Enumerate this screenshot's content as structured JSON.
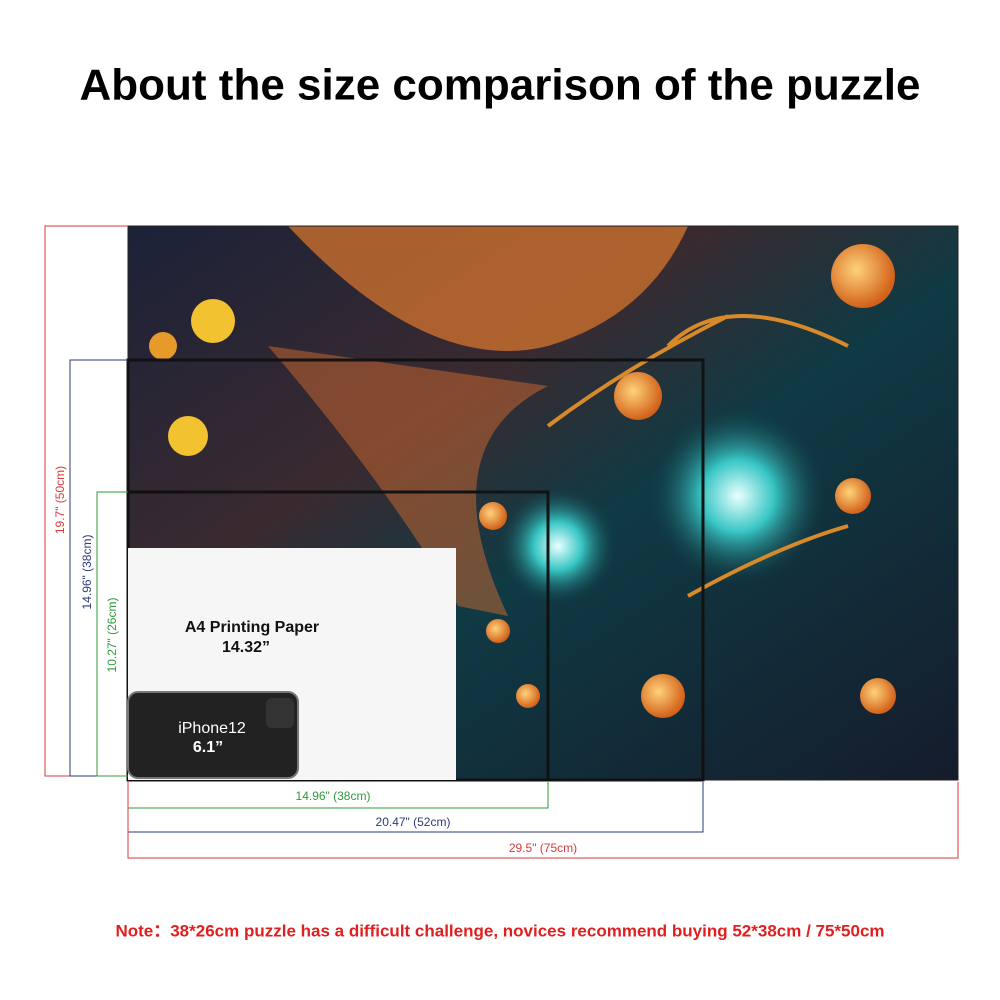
{
  "header": {
    "title": "About the size comparison of the puzzle"
  },
  "heights": [
    {
      "label": "19.7\" (50cm)"
    },
    {
      "label": "14.96\" (38cm)"
    },
    {
      "label": "10.27\" (26cm)"
    }
  ],
  "widths": [
    {
      "label": "14.96\" (38cm)"
    },
    {
      "label": "20.47\" (52cm)"
    },
    {
      "label": "29.5\" (75cm)"
    }
  ],
  "paper": {
    "label": "A4 Printing Paper",
    "size": "14.32”"
  },
  "phone": {
    "label": "iPhone12",
    "size": "6.1”"
  },
  "note": "Note：38*26cm puzzle has a difficult challenge, novices recommend buying 52*38cm / 75*50cm"
}
